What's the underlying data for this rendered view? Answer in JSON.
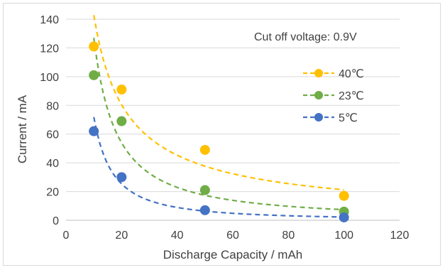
{
  "chart_data": {
    "type": "scatter",
    "title": "",
    "xlabel": "Discharge Capacity / mAh",
    "ylabel": "Current / mA",
    "xlim": [
      0,
      120
    ],
    "ylim": [
      0,
      140
    ],
    "xticks": [
      0,
      20,
      40,
      60,
      80,
      100,
      120
    ],
    "yticks": [
      0,
      20,
      40,
      60,
      80,
      100,
      120,
      140
    ],
    "grid": "horizontal",
    "legend_position": "right",
    "annotation": "Cut off voltage: 0.9V",
    "series": [
      {
        "name": "40℃",
        "color": "#FFC000",
        "x": [
          10,
          20,
          50,
          100
        ],
        "y": [
          121,
          91,
          49,
          17
        ],
        "trendline": "power",
        "line_style": "dashed"
      },
      {
        "name": "23℃",
        "color": "#70AD47",
        "x": [
          10,
          20,
          50,
          100
        ],
        "y": [
          101,
          69,
          21,
          6
        ],
        "trendline": "power",
        "line_style": "dashed"
      },
      {
        "name": "5℃",
        "color": "#4472C4",
        "x": [
          10,
          20,
          50,
          100
        ],
        "y": [
          62,
          30,
          7,
          2
        ],
        "trendline": "power",
        "line_style": "dashed"
      }
    ]
  }
}
